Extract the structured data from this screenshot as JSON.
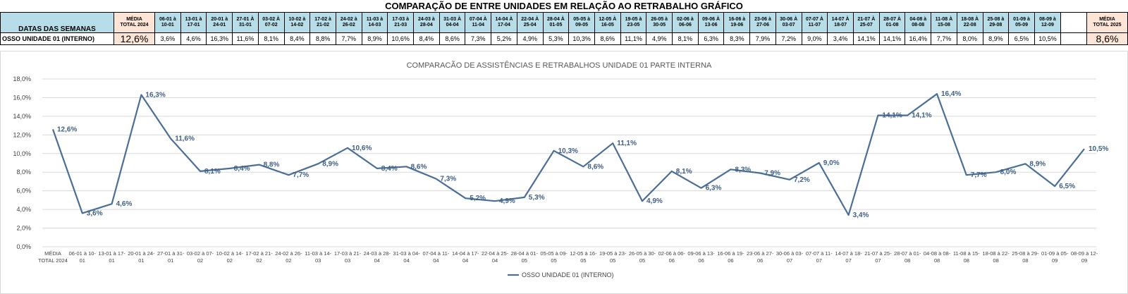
{
  "header": {
    "title": "COMPARAÇÃO DE ENTRE UNIDADES EM RELAÇÃO AO RETRABALHO GRÁFICO",
    "row_label": "DATAS DAS SEMANAS",
    "unit_label": "OSSO UNIDADE 01 (INTERNO)",
    "media_2024_label": [
      "MÉDIA",
      "TOTAL 2024"
    ],
    "media_2025_label": [
      "MÉDIA",
      "TOTAL 2025"
    ],
    "media_2024_value": "12,6%",
    "media_2025_value": "8,6%"
  },
  "weeks": [
    {
      "header": [
        "06-01 à",
        "10-01"
      ],
      "value": "3,6%"
    },
    {
      "header": [
        "13-01 à",
        "17-01"
      ],
      "value": "4,6%"
    },
    {
      "header": [
        "20-01 à",
        "24-01"
      ],
      "value": "16,3%"
    },
    {
      "header": [
        "27-01 À",
        "31-01"
      ],
      "value": "11,6%"
    },
    {
      "header": [
        "03-02 À",
        "07-02"
      ],
      "value": "8,1%"
    },
    {
      "header": [
        "10-02 à",
        "14-02"
      ],
      "value": "8,4%"
    },
    {
      "header": [
        "17-02 à",
        "21-02"
      ],
      "value": "8,8%"
    },
    {
      "header": [
        "24-02 à",
        "26-02"
      ],
      "value": "7,7%"
    },
    {
      "header": [
        "11-03 à",
        "14-03"
      ],
      "value": "8,9%"
    },
    {
      "header": [
        "17-03 à",
        "21-03"
      ],
      "value": "10,6%"
    },
    {
      "header": [
        "24-03 à",
        "28-04"
      ],
      "value": "8,4%"
    },
    {
      "header": [
        "31-03 À",
        "04-04"
      ],
      "value": "8,6%"
    },
    {
      "header": [
        "07-04 À",
        "11-04"
      ],
      "value": "7,3%"
    },
    {
      "header": [
        "14-04 À",
        "17-04"
      ],
      "value": "5,2%"
    },
    {
      "header": [
        "22-04 À",
        "25-04"
      ],
      "value": "4,9%"
    },
    {
      "header": [
        "28-04 À",
        "01-05"
      ],
      "value": "5,3%"
    },
    {
      "header": [
        "05-05 à",
        "09-05"
      ],
      "value": "10,3%"
    },
    {
      "header": [
        "12-05 À",
        "16-05"
      ],
      "value": "8,6%"
    },
    {
      "header": [
        "19-05 à",
        "23-05"
      ],
      "value": "11,1%"
    },
    {
      "header": [
        "26-05 à",
        "30-05"
      ],
      "value": "4,9%"
    },
    {
      "header": [
        "02-06 à",
        "06-06"
      ],
      "value": "8,1%"
    },
    {
      "header": [
        "09-06 À",
        "13-06"
      ],
      "value": "6,3%"
    },
    {
      "header": [
        "16-06 à",
        "19-06"
      ],
      "value": "8,3%"
    },
    {
      "header": [
        "23-06 à",
        "27-06"
      ],
      "value": "7,9%"
    },
    {
      "header": [
        "30-06 À",
        "03-07"
      ],
      "value": "7,2%"
    },
    {
      "header": [
        "07-07 À",
        "11-07"
      ],
      "value": "9,0%"
    },
    {
      "header": [
        "14-07 À",
        "18-07"
      ],
      "value": "3,4%"
    },
    {
      "header": [
        "21-07 À",
        "25-07"
      ],
      "value": "14,1%"
    },
    {
      "header": [
        "28-07 À",
        "01-08"
      ],
      "value": "14,1%"
    },
    {
      "header": [
        "04-08 à",
        "08-08"
      ],
      "value": "16,4%"
    },
    {
      "header": [
        "11-08 À",
        "15-08"
      ],
      "value": "7,7%"
    },
    {
      "header": [
        "18-08 À",
        "22-08"
      ],
      "value": "8,0%"
    },
    {
      "header": [
        "25-08 à",
        "29-08"
      ],
      "value": "8,9%"
    },
    {
      "header": [
        "01-09 à",
        "05-09"
      ],
      "value": "6,5%"
    },
    {
      "header": [
        "08-09 à",
        "12-09"
      ],
      "value": "10,5%"
    }
  ],
  "colors": {
    "header_bg": "#b7dde8",
    "media_bg": "#fce4d6",
    "line": "#4a6f97",
    "grid": "#d9d9d9",
    "label": "#3f5f85"
  },
  "chart_data": {
    "type": "line",
    "title": "COMPARACÃO DE ASSISTÊNCIAS E RETRABALHOS UNIDADE 01 PARTE INTERNA",
    "categories": [
      [
        "MÉDIA",
        "TOTAL 2024"
      ],
      [
        "06-01 à 10-",
        "01"
      ],
      [
        "13-01 à 17-",
        "01"
      ],
      [
        "20-01 à 24-",
        "01"
      ],
      [
        "27-01 à 31-",
        "01"
      ],
      [
        "03-02 à 07-",
        "02"
      ],
      [
        "10-02 à 14-",
        "02"
      ],
      [
        "17-02 à 21-",
        "02"
      ],
      [
        "24-02 à 26-",
        "02"
      ],
      [
        "11-03 à 14-",
        "03"
      ],
      [
        "17-03 à 21-",
        "03"
      ],
      [
        "24-03 à 28-",
        "04"
      ],
      [
        "31-03 à 04-",
        "04"
      ],
      [
        "07-04 à 11-",
        "04"
      ],
      [
        "14-04 à 17-",
        "04"
      ],
      [
        "22-04 à 25-",
        "04"
      ],
      [
        "28-04 à 01-",
        "05"
      ],
      [
        "05-05 à 09-",
        "05"
      ],
      [
        "12-05 à 16-",
        "05"
      ],
      [
        "19-05 à 23-",
        "05"
      ],
      [
        "26-05 à 30-",
        "05"
      ],
      [
        "02-06 à 06-",
        "06"
      ],
      [
        "09-06 à 13-",
        "06"
      ],
      [
        "16-06 à 19-",
        "06"
      ],
      [
        "23-06 à 27-",
        "06"
      ],
      [
        "30-06 à 03-",
        "07"
      ],
      [
        "07-07 à 11-",
        "07"
      ],
      [
        "14-07 à 18-",
        "07"
      ],
      [
        "21-07 à 25-",
        "07"
      ],
      [
        "28-07 à 01-",
        "08"
      ],
      [
        "04-08 à 08-",
        "08"
      ],
      [
        "11-08 à 15-",
        "08"
      ],
      [
        "18-08 à 22-",
        "08"
      ],
      [
        "25-08 à 29-",
        "08"
      ],
      [
        "01-09 à 05-",
        "09"
      ],
      [
        "08-09 à 12-",
        "09"
      ]
    ],
    "series": [
      {
        "name": "OSSO UNIDADE 01 (INTERNO)",
        "values": [
          12.6,
          3.6,
          4.6,
          16.3,
          11.6,
          8.1,
          8.4,
          8.8,
          7.7,
          8.9,
          10.6,
          8.4,
          8.6,
          7.3,
          5.2,
          4.9,
          5.3,
          10.3,
          8.6,
          11.1,
          4.9,
          8.1,
          6.3,
          8.3,
          7.9,
          7.2,
          9.0,
          3.4,
          14.1,
          14.1,
          16.4,
          7.7,
          8.0,
          8.9,
          6.5,
          10.5
        ],
        "labels": [
          "12,6%",
          "3,6%",
          "4,6%",
          "16,3%",
          "11,6%",
          "8,1%",
          "8,4%",
          "8,8%",
          "7,7%",
          "8,9%",
          "10,6%",
          "8,4%",
          "8,6%",
          "7,3%",
          "5,2%",
          "4,9%",
          "5,3%",
          "10,3%",
          "8,6%",
          "11,1%",
          "4,9%",
          "8,1%",
          "6,3%",
          "8,3%",
          "7,9%",
          "7,2%",
          "9,0%",
          "3,4%",
          "14,1%",
          "14,1%",
          "16,4%",
          "7,7%",
          "8,0%",
          "8,9%",
          "6,5%",
          "10,5%"
        ]
      }
    ],
    "yticks": [
      "0,0%",
      "2,0%",
      "4,0%",
      "6,0%",
      "8,0%",
      "10,0%",
      "12,0%",
      "14,0%",
      "16,0%",
      "18,0%"
    ],
    "ylim": [
      0,
      18
    ],
    "grid": true,
    "legend": "bottom"
  }
}
